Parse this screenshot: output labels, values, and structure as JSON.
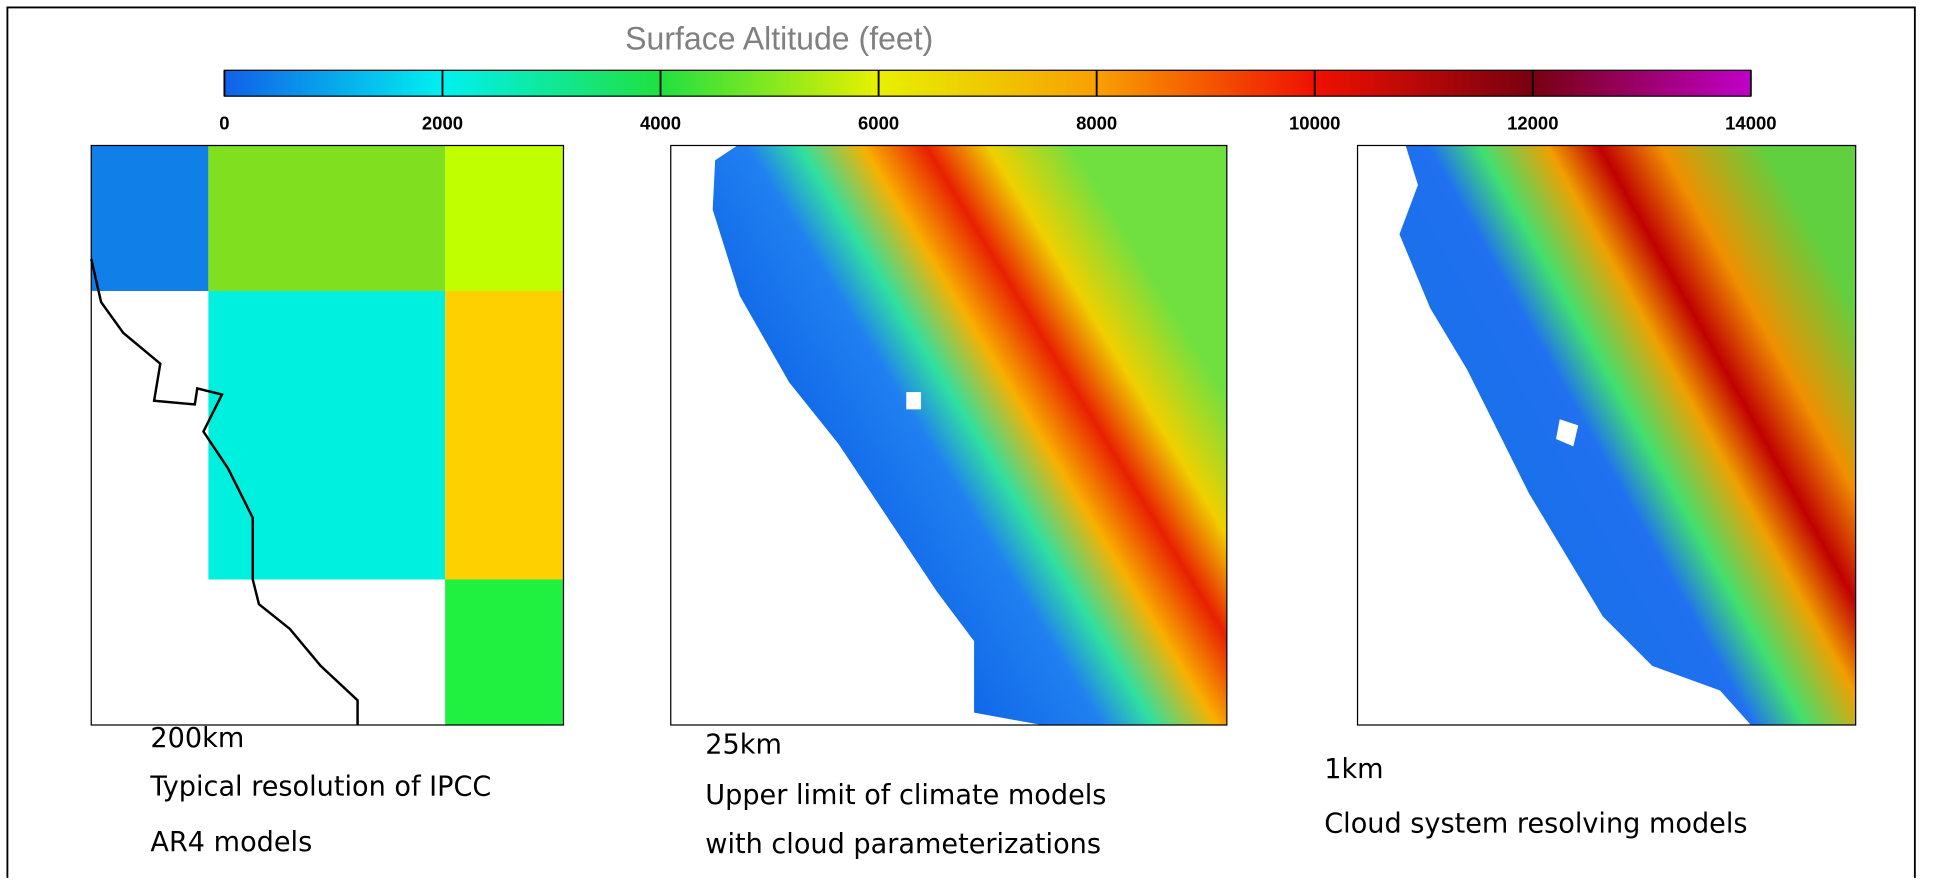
{
  "colorbar": {
    "title": "Surface Altitude (feet)",
    "lim": [
      0,
      14000
    ],
    "ticks": [
      0,
      2000,
      4000,
      6000,
      8000,
      10000,
      12000,
      14000
    ],
    "colors": [
      "#1060e8",
      "#00f0f0",
      "#20e040",
      "#e8f000",
      "#f8a000",
      "#f01000",
      "#780010",
      "#c000c8"
    ]
  },
  "panels": [
    {
      "resolution": "200km",
      "description": [
        "Typical resolution of IPCC",
        "AR4 models"
      ]
    },
    {
      "resolution": "25km",
      "description": [
        "Upper limit of climate models",
        "with cloud parameterizations"
      ]
    },
    {
      "resolution": "1km",
      "description": [
        "Cloud system resolving models"
      ]
    }
  ]
}
